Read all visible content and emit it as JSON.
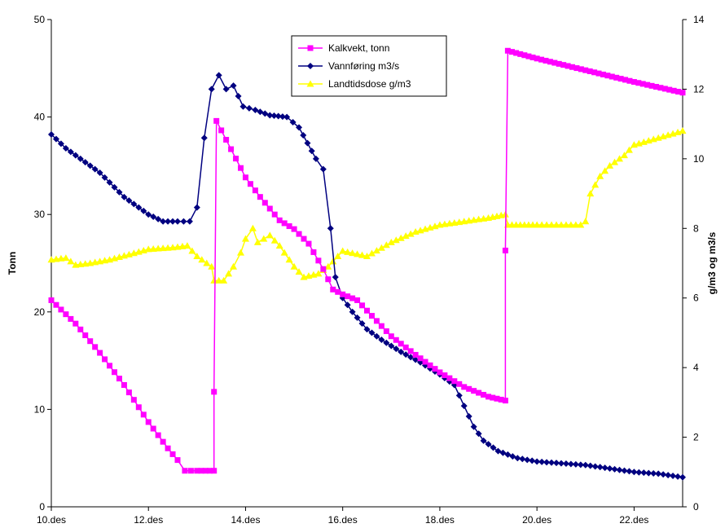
{
  "chart_data": {
    "type": "line",
    "title": "",
    "xlabel": "",
    "ylabel_left": "Tonn",
    "ylabel_right": "g/m3 og m3/s",
    "x_domain": [
      10.0,
      23.0
    ],
    "x_ticks": [
      {
        "v": 10,
        "label": "10.des"
      },
      {
        "v": 12,
        "label": "12.des"
      },
      {
        "v": 14,
        "label": "14.des"
      },
      {
        "v": 16,
        "label": "16.des"
      },
      {
        "v": 18,
        "label": "18.des"
      },
      {
        "v": 20,
        "label": "20.des"
      },
      {
        "v": 22,
        "label": "22.des"
      }
    ],
    "ylim_left": [
      0,
      50
    ],
    "y_ticks_left": [
      0,
      10,
      20,
      30,
      40,
      50
    ],
    "ylim_right": [
      0,
      14
    ],
    "y_ticks_right": [
      0,
      2,
      4,
      6,
      8,
      10,
      12,
      14
    ],
    "grid": false,
    "legend_position": "top-center",
    "series": [
      {
        "name": "Kalkvekt, tonn",
        "axis": "left",
        "color": "#ff00ff",
        "marker": "square",
        "points": [
          [
            10.0,
            21.2
          ],
          [
            10.5,
            18.8
          ],
          [
            11.0,
            15.8
          ],
          [
            11.5,
            12.5
          ],
          [
            12.0,
            8.7
          ],
          [
            12.4,
            6.0
          ],
          [
            12.6,
            4.8
          ],
          [
            12.75,
            3.7
          ],
          [
            13.0,
            3.7
          ],
          [
            13.35,
            3.7
          ],
          [
            13.35,
            11.8
          ],
          [
            13.4,
            39.6
          ],
          [
            13.7,
            36.7
          ],
          [
            14.0,
            33.8
          ],
          [
            14.3,
            31.8
          ],
          [
            14.7,
            29.4
          ],
          [
            15.0,
            28.5
          ],
          [
            15.3,
            27.0
          ],
          [
            15.6,
            24.4
          ],
          [
            15.8,
            22.3
          ],
          [
            16.0,
            21.8
          ],
          [
            16.3,
            21.2
          ],
          [
            16.6,
            19.6
          ],
          [
            17.0,
            17.5
          ],
          [
            17.5,
            15.6
          ],
          [
            18.0,
            13.8
          ],
          [
            18.5,
            12.3
          ],
          [
            19.0,
            11.3
          ],
          [
            19.35,
            10.9
          ],
          [
            19.35,
            26.3
          ],
          [
            19.4,
            46.8
          ],
          [
            20.0,
            46.0
          ],
          [
            21.0,
            44.8
          ],
          [
            22.0,
            43.6
          ],
          [
            23.0,
            42.5
          ]
        ]
      },
      {
        "name": "Vannføring m3/s",
        "axis": "right",
        "color": "#000080",
        "marker": "diamond",
        "points": [
          [
            10.0,
            10.7
          ],
          [
            10.3,
            10.3
          ],
          [
            10.6,
            10.0
          ],
          [
            11.0,
            9.6
          ],
          [
            11.5,
            8.9
          ],
          [
            12.0,
            8.4
          ],
          [
            12.3,
            8.2
          ],
          [
            12.6,
            8.2
          ],
          [
            12.85,
            8.2
          ],
          [
            13.0,
            8.6
          ],
          [
            13.15,
            10.6
          ],
          [
            13.3,
            12.0
          ],
          [
            13.45,
            12.4
          ],
          [
            13.6,
            12.0
          ],
          [
            13.75,
            12.1
          ],
          [
            13.95,
            11.5
          ],
          [
            14.2,
            11.4
          ],
          [
            14.5,
            11.25
          ],
          [
            14.85,
            11.2
          ],
          [
            15.1,
            10.9
          ],
          [
            15.45,
            10.0
          ],
          [
            15.6,
            9.7
          ],
          [
            15.75,
            8.0
          ],
          [
            15.85,
            6.6
          ],
          [
            16.0,
            6.0
          ],
          [
            16.2,
            5.6
          ],
          [
            16.5,
            5.1
          ],
          [
            16.8,
            4.8
          ],
          [
            17.2,
            4.45
          ],
          [
            17.6,
            4.15
          ],
          [
            18.0,
            3.8
          ],
          [
            18.3,
            3.5
          ],
          [
            18.5,
            2.9
          ],
          [
            18.7,
            2.3
          ],
          [
            18.9,
            1.9
          ],
          [
            19.2,
            1.6
          ],
          [
            19.6,
            1.4
          ],
          [
            20.0,
            1.3
          ],
          [
            20.5,
            1.25
          ],
          [
            21.0,
            1.2
          ],
          [
            21.5,
            1.1
          ],
          [
            22.0,
            1.0
          ],
          [
            22.5,
            0.95
          ],
          [
            23.0,
            0.85
          ]
        ]
      },
      {
        "name": "Landtidsdose g/m3",
        "axis": "right",
        "color": "#ffff00",
        "marker": "triangle",
        "points": [
          [
            10.0,
            7.1
          ],
          [
            10.3,
            7.15
          ],
          [
            10.5,
            6.95
          ],
          [
            10.8,
            7.0
          ],
          [
            11.2,
            7.1
          ],
          [
            11.6,
            7.25
          ],
          [
            12.0,
            7.4
          ],
          [
            12.5,
            7.45
          ],
          [
            12.8,
            7.5
          ],
          [
            13.0,
            7.2
          ],
          [
            13.3,
            6.9
          ],
          [
            13.35,
            6.5
          ],
          [
            13.55,
            6.5
          ],
          [
            13.75,
            6.9
          ],
          [
            13.9,
            7.3
          ],
          [
            14.0,
            7.7
          ],
          [
            14.15,
            8.0
          ],
          [
            14.25,
            7.6
          ],
          [
            14.5,
            7.8
          ],
          [
            14.7,
            7.5
          ],
          [
            15.0,
            6.9
          ],
          [
            15.2,
            6.6
          ],
          [
            15.5,
            6.7
          ],
          [
            15.7,
            6.9
          ],
          [
            16.0,
            7.35
          ],
          [
            16.5,
            7.2
          ],
          [
            17.0,
            7.6
          ],
          [
            17.5,
            7.9
          ],
          [
            18.0,
            8.1
          ],
          [
            18.5,
            8.2
          ],
          [
            19.0,
            8.3
          ],
          [
            19.35,
            8.4
          ],
          [
            19.4,
            8.1
          ],
          [
            20.0,
            8.1
          ],
          [
            20.5,
            8.1
          ],
          [
            20.9,
            8.1
          ],
          [
            21.0,
            8.2
          ],
          [
            21.1,
            9.0
          ],
          [
            21.3,
            9.5
          ],
          [
            21.5,
            9.8
          ],
          [
            21.8,
            10.1
          ],
          [
            22.0,
            10.4
          ],
          [
            22.5,
            10.6
          ],
          [
            23.0,
            10.8
          ]
        ]
      }
    ]
  }
}
